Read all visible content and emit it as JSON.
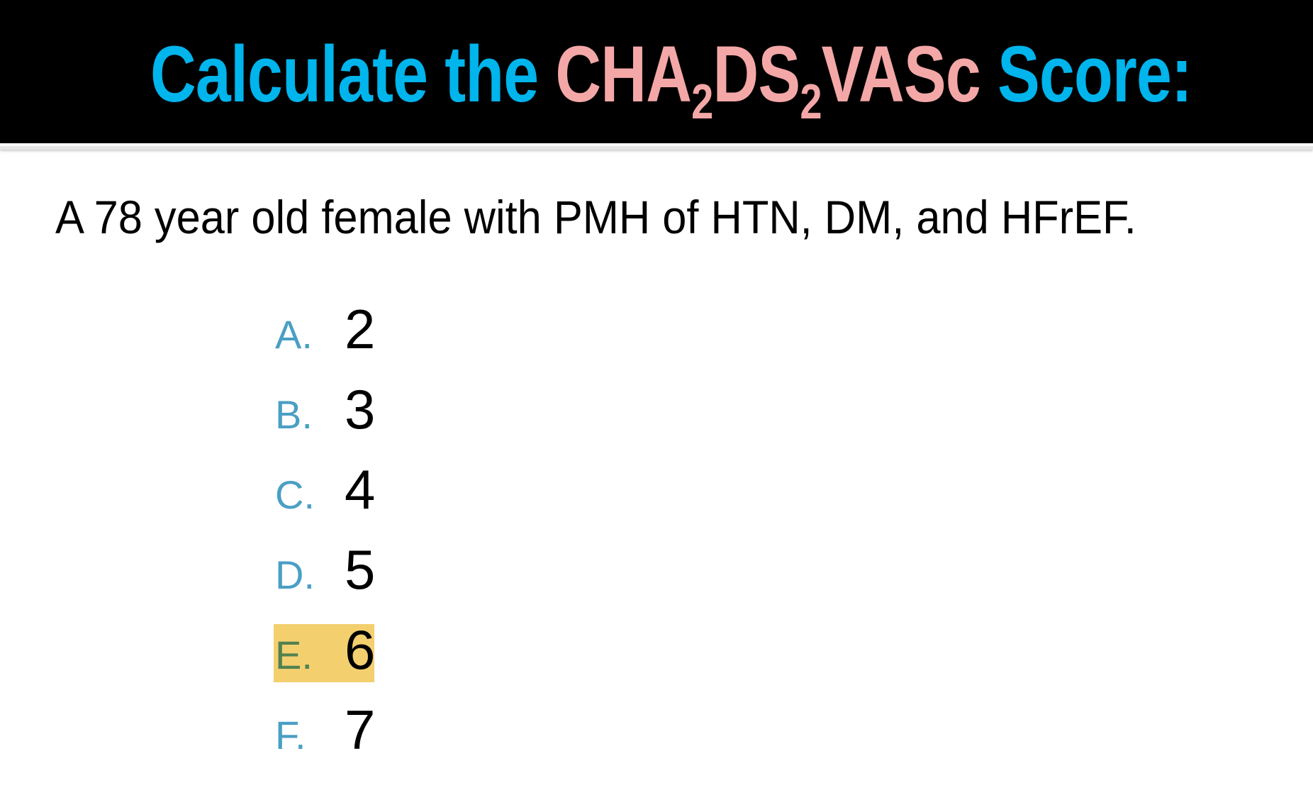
{
  "title": {
    "prefix": "Calculate the ",
    "cha": "CHA",
    "sub1": "2",
    "ds": "DS",
    "sub2": "2",
    "vasc": "VASc",
    "suffix": " Score:"
  },
  "question": "A 78 year old female with PMH of HTN, DM, and HFrEF.",
  "options": [
    {
      "letter": "A.",
      "value": "2"
    },
    {
      "letter": "B.",
      "value": "3"
    },
    {
      "letter": "C.",
      "value": "4"
    },
    {
      "letter": "D.",
      "value": "5"
    },
    {
      "letter": "E.",
      "value": "6",
      "highlighted": true
    },
    {
      "letter": "F.",
      "value": "7"
    }
  ],
  "colors": {
    "title_cyan": "#00b4ec",
    "title_pink": "#f4a7a7",
    "option_letter": "#4a9fc4",
    "highlight": "#f3cf6e",
    "highlight_letter": "#528150"
  }
}
